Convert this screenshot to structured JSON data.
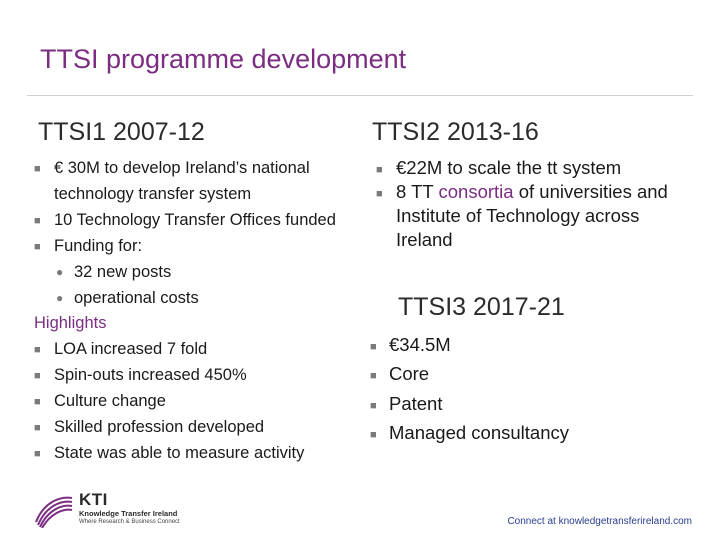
{
  "title": "TTSI programme development",
  "left": {
    "heading": "TTSI1 2007-12",
    "items": [
      {
        "type": "bullet",
        "text": "€ 30M to develop Ireland’s national technology transfer system"
      },
      {
        "type": "bullet",
        "text": "10 Technology Transfer Offices funded"
      },
      {
        "type": "bullet",
        "text": "Funding for:"
      },
      {
        "type": "sub",
        "text": "32 new posts"
      },
      {
        "type": "sub",
        "text": "operational costs"
      }
    ],
    "highlights_heading": "Highlights",
    "highlights": [
      "LOA increased 7 fold",
      "Spin-outs increased 450%",
      "Culture change",
      "Skilled profession developed",
      "State was able to measure activity"
    ]
  },
  "right": {
    "heading": "TTSI2 2013-16",
    "bullets": [
      {
        "pre": "€22M to scale the tt system",
        "highlight": "",
        "post": ""
      },
      {
        "pre": "8 TT ",
        "highlight": "consortia",
        "post": " of universities and Institute of Technology across Ireland"
      }
    ],
    "heading2": "TTSI3 2017-21",
    "bullets2": [
      "€34.5M",
      "Core",
      "Patent",
      "Managed consultancy"
    ]
  },
  "footer": {
    "logo_text": "KTI",
    "logo_line1": "Knowledge Transfer Ireland",
    "logo_line2": "Where Research & Business Connect",
    "link": "Connect at knowledgetransferireland.com"
  },
  "colors": {
    "accent": "#7b2d82",
    "link": "#2a3d8f"
  },
  "icons": {
    "bullet": "square-bullet-icon",
    "sub_bullet": "dot-bullet-icon"
  }
}
